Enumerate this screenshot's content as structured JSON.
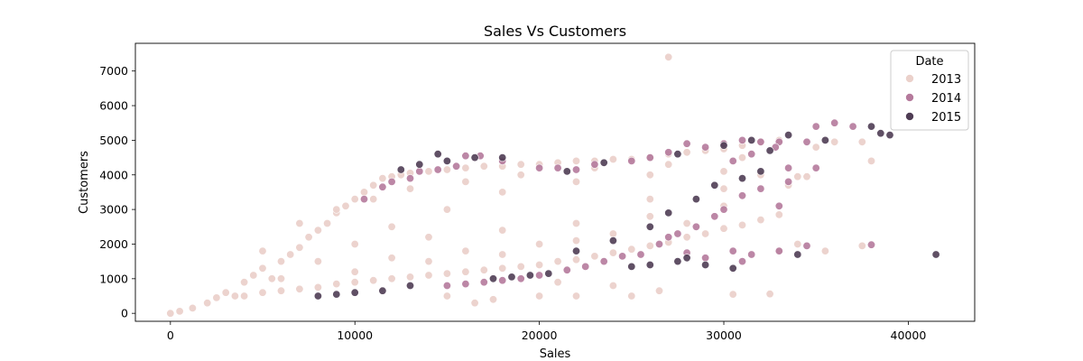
{
  "chart_data": {
    "type": "scatter",
    "title": "Sales Vs Customers",
    "xlabel": "Sales",
    "ylabel": "Customers",
    "xlim": [
      -1900,
      43600
    ],
    "ylim": [
      -230,
      7800
    ],
    "xticks": [
      0,
      10000,
      20000,
      30000,
      40000
    ],
    "yticks": [
      0,
      1000,
      2000,
      3000,
      4000,
      5000,
      6000,
      7000
    ],
    "grid": false,
    "legend": {
      "title": "Date",
      "placement": "top-right",
      "entries": [
        "2013",
        "2014",
        "2015"
      ]
    },
    "series": [
      {
        "name": "2013",
        "color": "#ebd1cb",
        "points": [
          [
            0,
            0
          ],
          [
            500,
            60
          ],
          [
            1200,
            150
          ],
          [
            2000,
            300
          ],
          [
            2500,
            450
          ],
          [
            3000,
            600
          ],
          [
            3500,
            500
          ],
          [
            4000,
            900
          ],
          [
            4500,
            1100
          ],
          [
            5000,
            1300
          ],
          [
            5500,
            1000
          ],
          [
            6000,
            1500
          ],
          [
            6500,
            1700
          ],
          [
            7000,
            1900
          ],
          [
            7500,
            2200
          ],
          [
            8000,
            2400
          ],
          [
            8500,
            2600
          ],
          [
            9000,
            2900
          ],
          [
            9500,
            3100
          ],
          [
            10000,
            3300
          ],
          [
            10500,
            3500
          ],
          [
            11000,
            3700
          ],
          [
            11500,
            3900
          ],
          [
            12000,
            3950
          ],
          [
            12500,
            4000
          ],
          [
            13000,
            4050
          ],
          [
            14000,
            4100
          ],
          [
            15000,
            4150
          ],
          [
            16000,
            4200
          ],
          [
            17000,
            4250
          ],
          [
            18000,
            4250
          ],
          [
            19000,
            4300
          ],
          [
            20000,
            4300
          ],
          [
            21000,
            4350
          ],
          [
            22000,
            4400
          ],
          [
            23000,
            4400
          ],
          [
            24000,
            4450
          ],
          [
            25000,
            4450
          ],
          [
            26000,
            4500
          ],
          [
            27000,
            4600
          ],
          [
            28000,
            4650
          ],
          [
            29000,
            4700
          ],
          [
            30000,
            4750
          ],
          [
            31000,
            4850
          ],
          [
            32000,
            4950
          ],
          [
            33000,
            5000
          ],
          [
            4000,
            500
          ],
          [
            5000,
            600
          ],
          [
            6000,
            650
          ],
          [
            7000,
            700
          ],
          [
            8000,
            750
          ],
          [
            9000,
            850
          ],
          [
            10000,
            900
          ],
          [
            11000,
            950
          ],
          [
            12000,
            1000
          ],
          [
            13000,
            1050
          ],
          [
            14000,
            1100
          ],
          [
            15000,
            1150
          ],
          [
            16000,
            1200
          ],
          [
            17000,
            1250
          ],
          [
            18000,
            1300
          ],
          [
            19000,
            1350
          ],
          [
            20000,
            1400
          ],
          [
            21000,
            1500
          ],
          [
            22000,
            1550
          ],
          [
            23000,
            1650
          ],
          [
            24000,
            1750
          ],
          [
            25000,
            1850
          ],
          [
            26000,
            1950
          ],
          [
            27000,
            2050
          ],
          [
            28000,
            2200
          ],
          [
            29000,
            2300
          ],
          [
            30000,
            2450
          ],
          [
            31000,
            2550
          ],
          [
            32000,
            2700
          ],
          [
            33000,
            2850
          ],
          [
            33500,
            3700
          ],
          [
            34000,
            3950
          ],
          [
            34500,
            3950
          ],
          [
            35000,
            4800
          ],
          [
            36000,
            4950
          ],
          [
            37500,
            4950
          ],
          [
            38000,
            4400
          ],
          [
            27000,
            7400
          ],
          [
            16500,
            300
          ],
          [
            17500,
            400
          ],
          [
            15000,
            500
          ],
          [
            20000,
            500
          ],
          [
            22000,
            500
          ],
          [
            25000,
            500
          ],
          [
            26500,
            650
          ],
          [
            24000,
            800
          ],
          [
            21000,
            900
          ],
          [
            30500,
            550
          ],
          [
            32500,
            560
          ],
          [
            33000,
            1800
          ],
          [
            34000,
            2000
          ],
          [
            35500,
            1800
          ],
          [
            37500,
            1950
          ],
          [
            12000,
            2500
          ],
          [
            15000,
            3000
          ],
          [
            18000,
            3500
          ],
          [
            22000,
            3800
          ],
          [
            26000,
            4000
          ],
          [
            30000,
            4100
          ],
          [
            10000,
            2000
          ],
          [
            14000,
            2200
          ],
          [
            18000,
            2400
          ],
          [
            22000,
            2600
          ],
          [
            26000,
            2800
          ],
          [
            30000,
            3100
          ],
          [
            8000,
            1500
          ],
          [
            12000,
            1600
          ],
          [
            16000,
            1800
          ],
          [
            20000,
            2000
          ],
          [
            24000,
            2300
          ],
          [
            28000,
            2600
          ],
          [
            6000,
            1000
          ],
          [
            10000,
            1200
          ],
          [
            14000,
            1500
          ],
          [
            18000,
            1700
          ],
          [
            22000,
            2100
          ],
          [
            26000,
            3300
          ],
          [
            30000,
            3600
          ],
          [
            32000,
            4000
          ],
          [
            5000,
            1800
          ],
          [
            7000,
            2600
          ],
          [
            9000,
            3000
          ],
          [
            11000,
            3300
          ],
          [
            13000,
            3600
          ],
          [
            16000,
            3800
          ],
          [
            19000,
            4000
          ],
          [
            23000,
            4200
          ],
          [
            27000,
            4300
          ],
          [
            31000,
            4500
          ]
        ]
      },
      {
        "name": "2014",
        "color": "#b57a9c",
        "points": [
          [
            10500,
            3300
          ],
          [
            11500,
            3650
          ],
          [
            12000,
            3800
          ],
          [
            13000,
            3900
          ],
          [
            13500,
            4100
          ],
          [
            14500,
            4150
          ],
          [
            15500,
            4250
          ],
          [
            16000,
            4550
          ],
          [
            16800,
            4550
          ],
          [
            18000,
            4400
          ],
          [
            20000,
            4200
          ],
          [
            21000,
            4200
          ],
          [
            22000,
            4150
          ],
          [
            23000,
            4300
          ],
          [
            25000,
            4400
          ],
          [
            26000,
            4500
          ],
          [
            27000,
            4650
          ],
          [
            28000,
            4900
          ],
          [
            29000,
            4800
          ],
          [
            30000,
            4900
          ],
          [
            31000,
            5000
          ],
          [
            32000,
            4950
          ],
          [
            33000,
            4950
          ],
          [
            34500,
            4950
          ],
          [
            35000,
            5400
          ],
          [
            36000,
            5500
          ],
          [
            37000,
            5400
          ],
          [
            32800,
            4800
          ],
          [
            33500,
            4200
          ],
          [
            33000,
            3100
          ],
          [
            31000,
            3400
          ],
          [
            30000,
            3000
          ],
          [
            29500,
            2800
          ],
          [
            28500,
            2500
          ],
          [
            27500,
            2300
          ],
          [
            26500,
            2000
          ],
          [
            25500,
            1700
          ],
          [
            24500,
            1650
          ],
          [
            23500,
            1500
          ],
          [
            22500,
            1350
          ],
          [
            21500,
            1250
          ],
          [
            20000,
            1100
          ],
          [
            19000,
            1000
          ],
          [
            18000,
            950
          ],
          [
            17000,
            900
          ],
          [
            16000,
            850
          ],
          [
            15000,
            800
          ],
          [
            30500,
            1800
          ],
          [
            31500,
            1700
          ],
          [
            33000,
            1800
          ],
          [
            34500,
            1950
          ],
          [
            38000,
            1980
          ],
          [
            31000,
            1500
          ],
          [
            29000,
            1600
          ],
          [
            28000,
            1750
          ],
          [
            27000,
            2200
          ],
          [
            32000,
            3600
          ],
          [
            33500,
            3800
          ],
          [
            35000,
            4200
          ],
          [
            31500,
            4600
          ],
          [
            30500,
            4400
          ]
        ]
      },
      {
        "name": "2015",
        "color": "#4f3d54",
        "points": [
          [
            12500,
            4150
          ],
          [
            13500,
            4300
          ],
          [
            14500,
            4600
          ],
          [
            15000,
            4400
          ],
          [
            16500,
            4500
          ],
          [
            18000,
            4500
          ],
          [
            21500,
            4100
          ],
          [
            23500,
            4350
          ],
          [
            27500,
            4600
          ],
          [
            30000,
            4850
          ],
          [
            31500,
            5000
          ],
          [
            32500,
            4700
          ],
          [
            33500,
            5150
          ],
          [
            35500,
            5000
          ],
          [
            38000,
            5400
          ],
          [
            38500,
            5200
          ],
          [
            39000,
            5150
          ],
          [
            41500,
            1700
          ],
          [
            28000,
            1600
          ],
          [
            29000,
            1400
          ],
          [
            30500,
            1300
          ],
          [
            27500,
            1500
          ],
          [
            25000,
            1350
          ],
          [
            26000,
            1400
          ],
          [
            31000,
            3900
          ],
          [
            32000,
            4100
          ],
          [
            29500,
            3700
          ],
          [
            28500,
            3300
          ],
          [
            27000,
            2900
          ],
          [
            26000,
            2500
          ],
          [
            24000,
            2100
          ],
          [
            22000,
            1800
          ],
          [
            20500,
            1150
          ],
          [
            19500,
            1100
          ],
          [
            18500,
            1050
          ],
          [
            17500,
            1000
          ],
          [
            11500,
            650
          ],
          [
            10000,
            600
          ],
          [
            9000,
            550
          ],
          [
            8000,
            500
          ],
          [
            13000,
            800
          ],
          [
            34000,
            1700
          ]
        ]
      }
    ]
  }
}
